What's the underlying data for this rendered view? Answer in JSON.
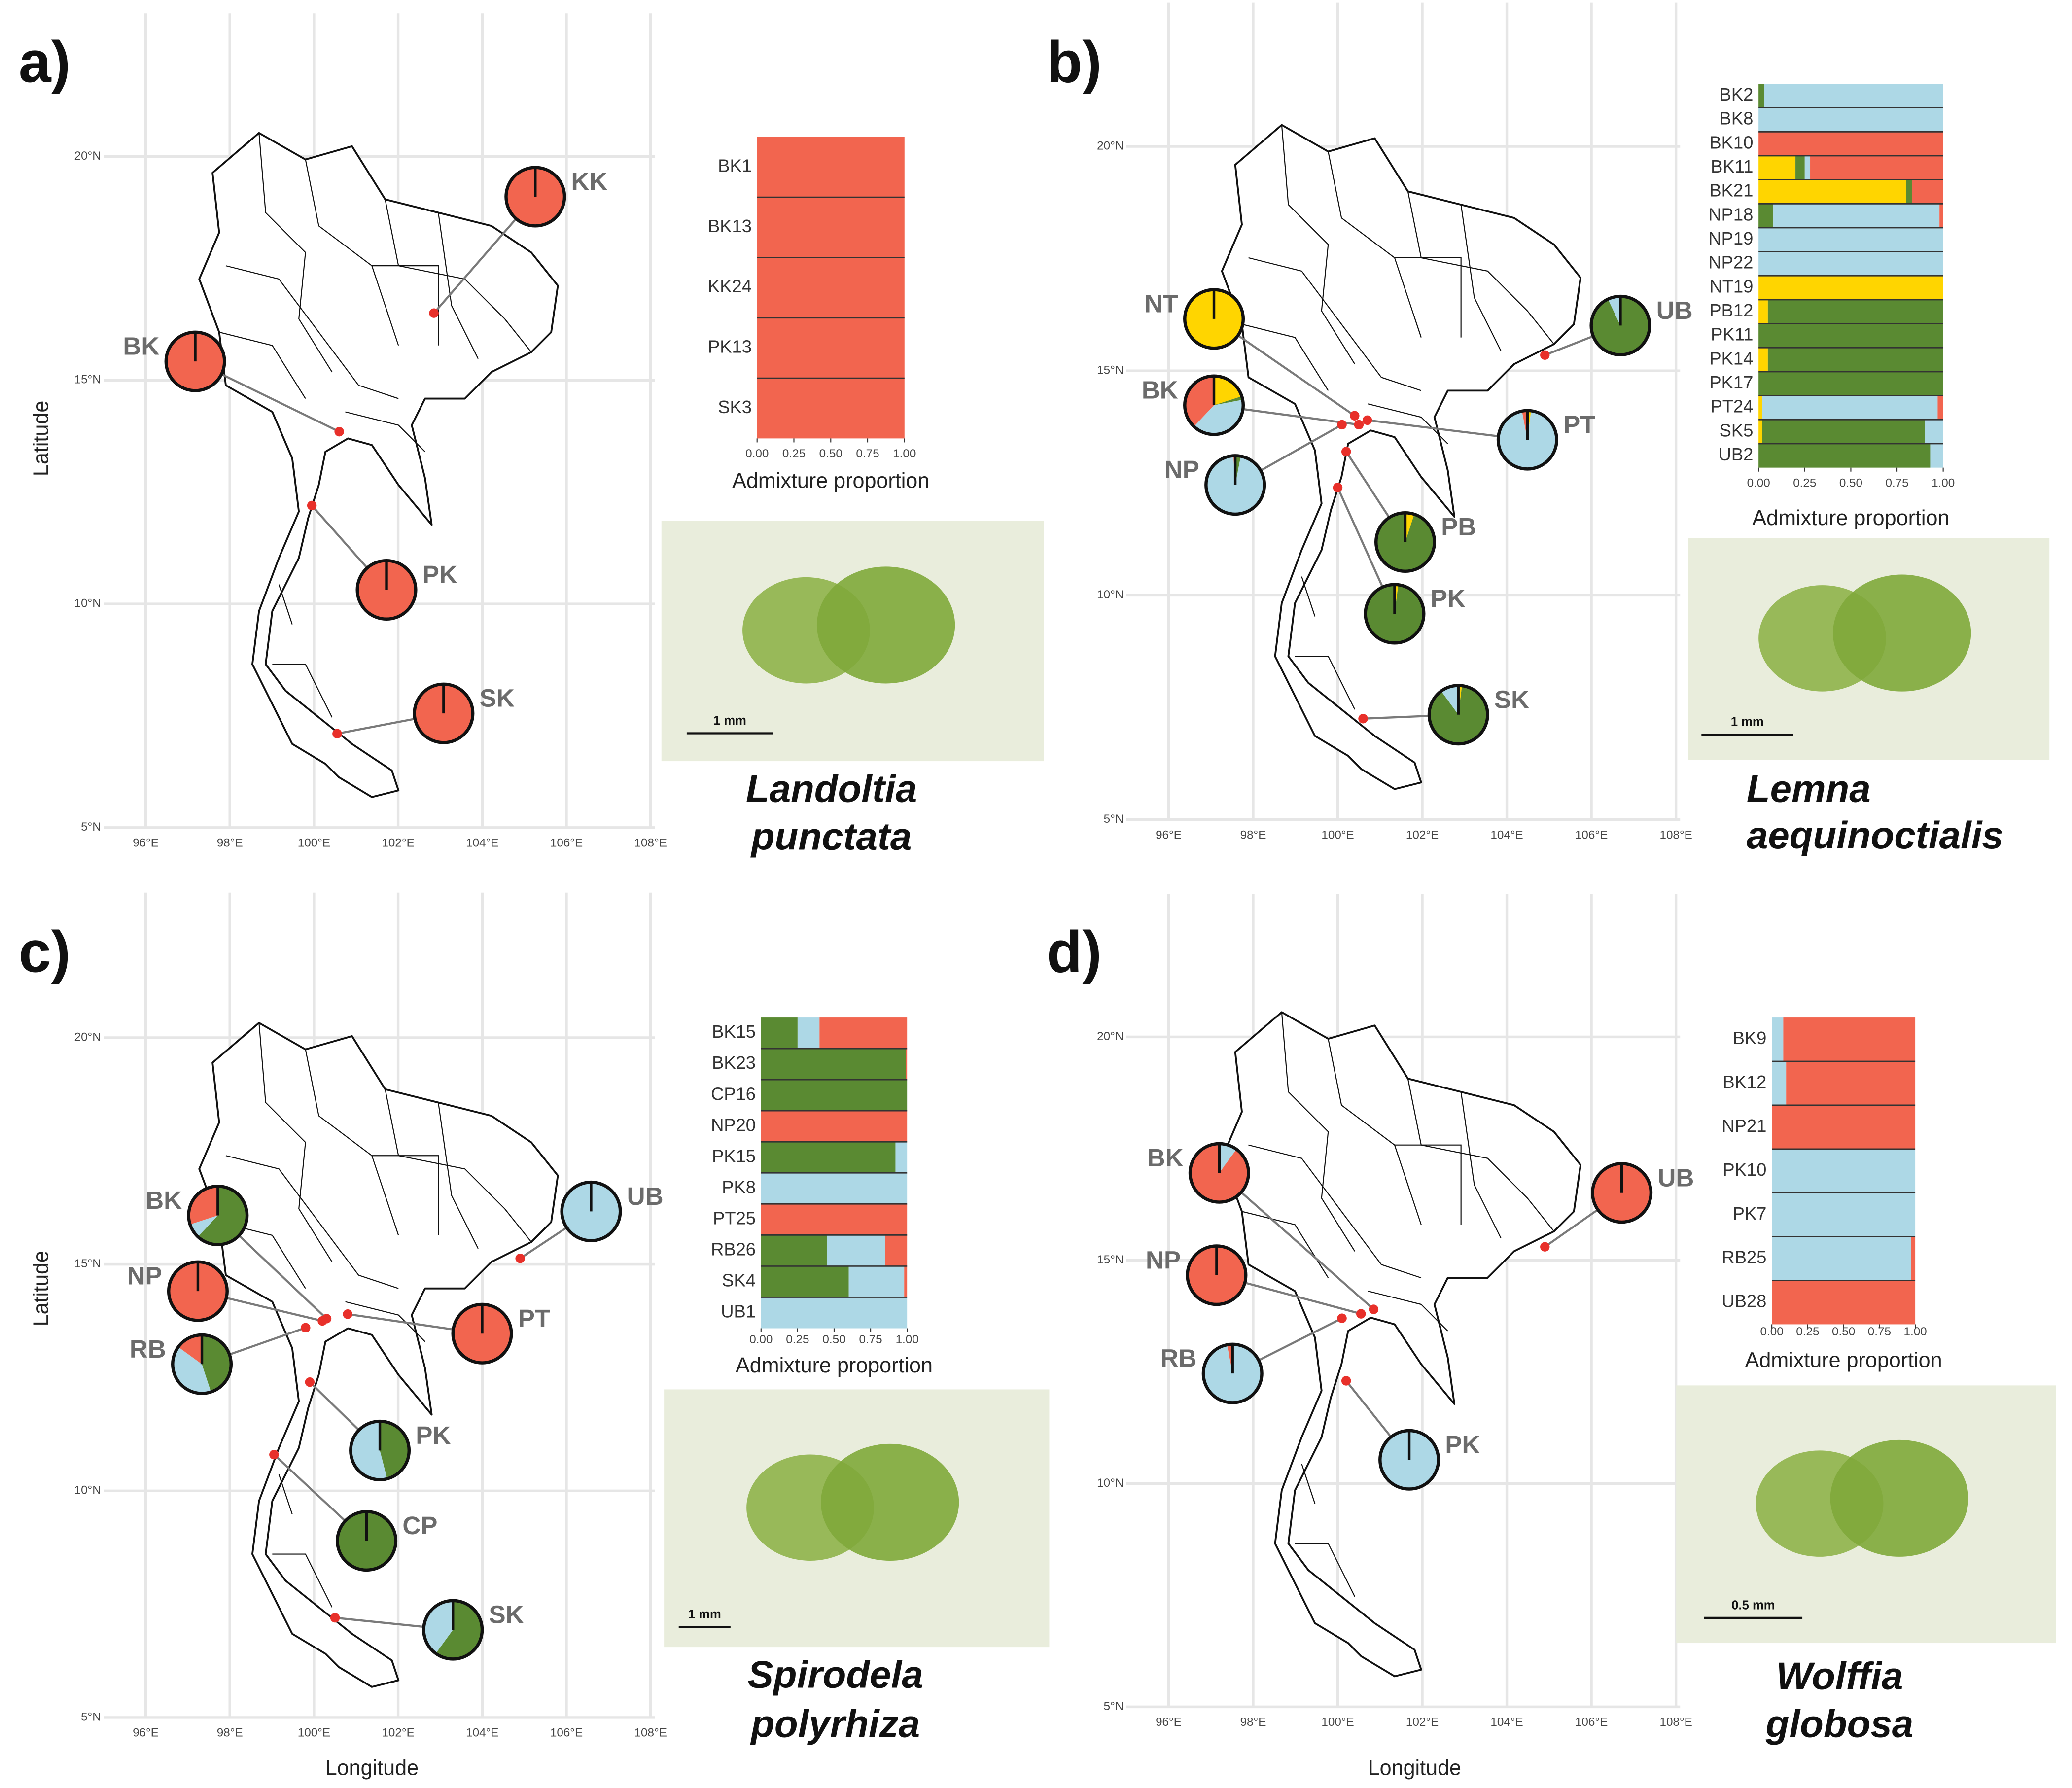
{
  "chart_data": [
    {
      "label": "a)",
      "map": {
        "type": "pie-map",
        "ylabel": "Latitude",
        "xlim": [
          95,
          108.1
        ],
        "ylim": [
          5,
          23.2
        ],
        "xticks": [
          {
            "value": 96,
            "label": "96°E"
          },
          {
            "value": 98,
            "label": "98°E"
          },
          {
            "value": 100,
            "label": "100°E"
          },
          {
            "value": 102,
            "label": "102°E"
          },
          {
            "value": 104,
            "label": "104°E"
          },
          {
            "value": 106,
            "label": "106°E"
          },
          {
            "value": 108,
            "label": "108°E"
          }
        ],
        "yticks": [
          {
            "value": 5,
            "label": "5°N"
          },
          {
            "value": 10,
            "label": "10°N"
          },
          {
            "value": 15,
            "label": "15°N"
          },
          {
            "value": 20,
            "label": "20°N"
          }
        ],
        "grid": true,
        "colors": [
          "#f2654f"
        ],
        "sites": [
          {
            "name": "KK",
            "x": 102.85,
            "y": 16.5,
            "values": [
              1
            ]
          },
          {
            "name": "BK",
            "x": 100.6,
            "y": 13.85,
            "values": [
              1
            ]
          },
          {
            "name": "PK",
            "x": 99.95,
            "y": 12.2,
            "values": [
              1
            ]
          },
          {
            "name": "SK",
            "x": 100.55,
            "y": 7.1,
            "values": [
              1
            ]
          }
        ]
      },
      "bars": {
        "type": "stacked-bar",
        "xlabel": "Admixture proportion",
        "xlim": [
          0,
          1
        ],
        "xticks": [
          {
            "value": 0,
            "label": "0.00"
          },
          {
            "value": 0.25,
            "label": "0.25"
          },
          {
            "value": 0.5,
            "label": "0.50"
          },
          {
            "value": 0.75,
            "label": "0.75"
          },
          {
            "value": 1,
            "label": "1.00"
          }
        ],
        "categories": [
          "BK1",
          "BK13",
          "KK24",
          "PK13",
          "SK3"
        ],
        "series": [
          {
            "color": "#f2654f",
            "values": [
              1,
              1,
              1,
              1,
              1
            ]
          }
        ]
      },
      "species": [
        "Landoltia",
        "punctata"
      ],
      "scale_label": "1 mm"
    },
    {
      "label": "b)",
      "map": {
        "type": "pie-map",
        "xlim": [
          95,
          108.1
        ],
        "ylim": [
          5,
          23.2
        ],
        "xticks": [
          {
            "value": 96,
            "label": "96°E"
          },
          {
            "value": 98,
            "label": "98°E"
          },
          {
            "value": 100,
            "label": "100°E"
          },
          {
            "value": 102,
            "label": "102°E"
          },
          {
            "value": 104,
            "label": "104°E"
          },
          {
            "value": 106,
            "label": "106°E"
          },
          {
            "value": 108,
            "label": "108°E"
          }
        ],
        "yticks": [
          {
            "value": 5,
            "label": "5°N"
          },
          {
            "value": 10,
            "label": "10°N"
          },
          {
            "value": 15,
            "label": "15°N"
          },
          {
            "value": 20,
            "label": "20°N"
          }
        ],
        "grid": true,
        "colors": [
          "#ffd500",
          "#5a8a32",
          "#add8e6",
          "#f2654f"
        ],
        "sites": [
          {
            "name": "NT",
            "x": 100.4,
            "y": 14.0,
            "values": [
              1,
              0,
              0,
              0
            ]
          },
          {
            "name": "BK",
            "x": 100.5,
            "y": 13.8,
            "values": [
              0.2,
              0.02,
              0.4,
              0.38
            ]
          },
          {
            "name": "NP",
            "x": 100.1,
            "y": 13.8,
            "values": [
              0,
              0.03,
              0.96,
              0.01
            ]
          },
          {
            "name": "UB",
            "x": 104.9,
            "y": 15.35,
            "values": [
              0,
              0.93,
              0.07,
              0
            ]
          },
          {
            "name": "PT",
            "x": 100.7,
            "y": 13.9,
            "values": [
              0.02,
              0,
              0.95,
              0.03
            ]
          },
          {
            "name": "PB",
            "x": 100.2,
            "y": 13.2,
            "values": [
              0.05,
              0.95,
              0,
              0
            ]
          },
          {
            "name": "PK",
            "x": 100.0,
            "y": 12.4,
            "values": [
              0.02,
              0.98,
              0,
              0
            ]
          },
          {
            "name": "SK",
            "x": 100.6,
            "y": 7.25,
            "values": [
              0.02,
              0.88,
              0.1,
              0
            ]
          }
        ]
      },
      "bars": {
        "type": "stacked-bar",
        "xlabel": "Admixture proportion",
        "xlim": [
          0,
          1
        ],
        "xticks": [
          {
            "value": 0,
            "label": "0.00"
          },
          {
            "value": 0.25,
            "label": "0.25"
          },
          {
            "value": 0.5,
            "label": "0.50"
          },
          {
            "value": 0.75,
            "label": "0.75"
          },
          {
            "value": 1,
            "label": "1.00"
          }
        ],
        "categories": [
          "BK2",
          "BK8",
          "BK10",
          "BK11",
          "BK21",
          "NP18",
          "NP19",
          "NP22",
          "NT19",
          "PB12",
          "PK11",
          "PK14",
          "PK17",
          "PT24",
          "SK5",
          "UB2"
        ],
        "series": [
          {
            "color": "#ffd500",
            "values": [
              0,
              0,
              0,
              0.2,
              0.8,
              0,
              0,
              0,
              1,
              0.05,
              0,
              0.05,
              0,
              0.02,
              0.02,
              0
            ]
          },
          {
            "color": "#5a8a32",
            "values": [
              0.03,
              0,
              0,
              0.05,
              0.03,
              0.08,
              0,
              0,
              0,
              0.95,
              1,
              0.95,
              1,
              0,
              0.88,
              0.93
            ]
          },
          {
            "color": "#add8e6",
            "values": [
              0.97,
              1,
              0,
              0.03,
              0,
              0.9,
              1,
              1,
              0,
              0,
              0,
              0,
              0,
              0.95,
              0.1,
              0.07
            ]
          },
          {
            "color": "#f2654f",
            "values": [
              0,
              0,
              1,
              0.72,
              0.17,
              0.02,
              0,
              0,
              0,
              0,
              0,
              0,
              0,
              0.03,
              0,
              0
            ]
          }
        ]
      },
      "species": [
        "Lemna",
        "aequinoctialis"
      ],
      "scale_label": "1 mm"
    },
    {
      "label": "c)",
      "map": {
        "type": "pie-map",
        "xlabel": "Longitude",
        "ylabel": "Latitude",
        "xlim": [
          95,
          108.1
        ],
        "ylim": [
          5,
          23.2
        ],
        "xticks": [
          {
            "value": 96,
            "label": "96°E"
          },
          {
            "value": 98,
            "label": "98°E"
          },
          {
            "value": 100,
            "label": "100°E"
          },
          {
            "value": 102,
            "label": "102°E"
          },
          {
            "value": 104,
            "label": "104°E"
          },
          {
            "value": 106,
            "label": "106°E"
          },
          {
            "value": 108,
            "label": "108°E"
          }
        ],
        "yticks": [
          {
            "value": 5,
            "label": "5°N"
          },
          {
            "value": 10,
            "label": "10°N"
          },
          {
            "value": 15,
            "label": "15°N"
          },
          {
            "value": 20,
            "label": "20°N"
          }
        ],
        "grid": true,
        "colors": [
          "#5a8a32",
          "#add8e6",
          "#f2654f"
        ],
        "sites": [
          {
            "name": "BK",
            "x": 100.3,
            "y": 13.8,
            "values": [
              0.62,
              0.08,
              0.3
            ]
          },
          {
            "name": "NP",
            "x": 100.2,
            "y": 13.75,
            "values": [
              0,
              0,
              1
            ]
          },
          {
            "name": "RB",
            "x": 99.8,
            "y": 13.6,
            "values": [
              0.45,
              0.4,
              0.15
            ]
          },
          {
            "name": "UB",
            "x": 104.9,
            "y": 15.13,
            "values": [
              0,
              1,
              0
            ]
          },
          {
            "name": "PT",
            "x": 100.8,
            "y": 13.9,
            "values": [
              0,
              0,
              1
            ]
          },
          {
            "name": "PK",
            "x": 99.9,
            "y": 12.4,
            "values": [
              0.46,
              0.54,
              0
            ]
          },
          {
            "name": "CP",
            "x": 99.05,
            "y": 10.8,
            "values": [
              1,
              0,
              0
            ]
          },
          {
            "name": "SK",
            "x": 100.5,
            "y": 7.2,
            "values": [
              0.6,
              0.4,
              0
            ]
          }
        ]
      },
      "bars": {
        "type": "stacked-bar",
        "xlabel": "Admixture proportion",
        "xlim": [
          0,
          1
        ],
        "xticks": [
          {
            "value": 0,
            "label": "0.00"
          },
          {
            "value": 0.25,
            "label": "0.25"
          },
          {
            "value": 0.5,
            "label": "0.50"
          },
          {
            "value": 0.75,
            "label": "0.75"
          },
          {
            "value": 1,
            "label": "1.00"
          }
        ],
        "categories": [
          "BK15",
          "BK23",
          "CP16",
          "NP20",
          "PK15",
          "PK8",
          "PT25",
          "RB26",
          "SK4",
          "UB1"
        ],
        "series": [
          {
            "color": "#5a8a32",
            "values": [
              0.25,
              0.99,
              1,
              0,
              0.92,
              0,
              0,
              0.45,
              0.6,
              0
            ]
          },
          {
            "color": "#add8e6",
            "values": [
              0.15,
              0,
              0,
              0,
              0.08,
              1,
              0,
              0.4,
              0.38,
              1
            ]
          },
          {
            "color": "#f2654f",
            "values": [
              0.6,
              0.01,
              0,
              1,
              0,
              0,
              1,
              0.15,
              0.02,
              0
            ]
          }
        ]
      },
      "species": [
        "Spirodela",
        "polyrhiza"
      ],
      "scale_label": "1 mm"
    },
    {
      "label": "d)",
      "map": {
        "type": "pie-map",
        "xlabel": "Longitude",
        "xlim": [
          95,
          108.1
        ],
        "ylim": [
          5,
          23.2
        ],
        "xticks": [
          {
            "value": 96,
            "label": "96°E"
          },
          {
            "value": 98,
            "label": "98°E"
          },
          {
            "value": 100,
            "label": "100°E"
          },
          {
            "value": 102,
            "label": "102°E"
          },
          {
            "value": 104,
            "label": "104°E"
          },
          {
            "value": 106,
            "label": "106°E"
          },
          {
            "value": 108,
            "label": "108°E"
          }
        ],
        "yticks": [
          {
            "value": 5,
            "label": "5°N"
          },
          {
            "value": 10,
            "label": "10°N"
          },
          {
            "value": 15,
            "label": "15°N"
          },
          {
            "value": 20,
            "label": "20°N"
          }
        ],
        "grid": true,
        "colors": [
          "#add8e6",
          "#f2654f"
        ],
        "sites": [
          {
            "name": "BK",
            "x": 100.85,
            "y": 13.9,
            "values": [
              0.1,
              0.9
            ]
          },
          {
            "name": "NP",
            "x": 100.55,
            "y": 13.8,
            "values": [
              0,
              1
            ]
          },
          {
            "name": "RB",
            "x": 100.1,
            "y": 13.7,
            "values": [
              0.97,
              0.03
            ]
          },
          {
            "name": "UB",
            "x": 104.9,
            "y": 15.3,
            "values": [
              0,
              1
            ]
          },
          {
            "name": "PK",
            "x": 100.2,
            "y": 12.3,
            "values": [
              1,
              0
            ]
          }
        ]
      },
      "bars": {
        "type": "stacked-bar",
        "xlabel": "Admixture proportion",
        "xlim": [
          0,
          1
        ],
        "xticks": [
          {
            "value": 0,
            "label": "0.00"
          },
          {
            "value": 0.25,
            "label": "0.25"
          },
          {
            "value": 0.5,
            "label": "0.50"
          },
          {
            "value": 0.75,
            "label": "0.75"
          },
          {
            "value": 1,
            "label": "1.00"
          }
        ],
        "categories": [
          "BK9",
          "BK12",
          "NP21",
          "PK10",
          "PK7",
          "RB25",
          "UB28"
        ],
        "series": [
          {
            "color": "#add8e6",
            "values": [
              0.08,
              0.1,
              0,
              1,
              1,
              0.97,
              0
            ]
          },
          {
            "color": "#f2654f",
            "values": [
              0.92,
              0.9,
              1,
              0,
              0,
              0.03,
              1
            ]
          }
        ]
      },
      "species": [
        "Wolffia",
        "globosa"
      ],
      "scale_label": "0.5 mm"
    }
  ]
}
